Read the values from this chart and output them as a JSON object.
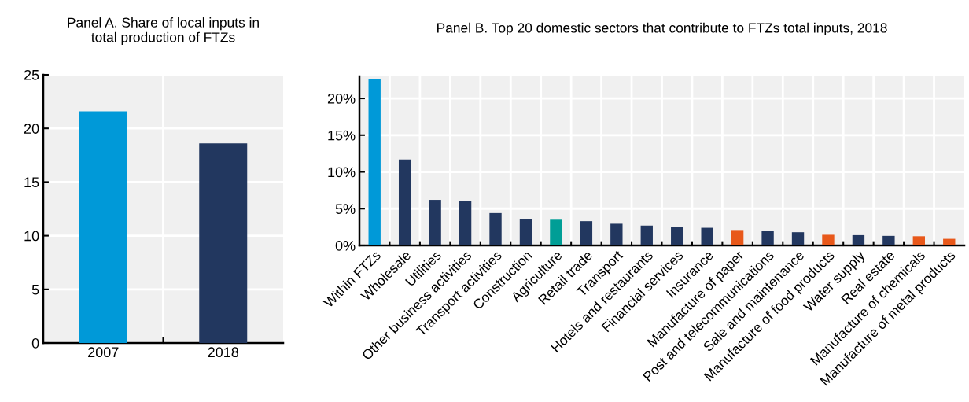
{
  "chart_data": [
    {
      "type": "bar",
      "title": "Panel A. Share of local inputs in\ntotal production of FTZs",
      "categories": [
        "2007",
        "2018"
      ],
      "values": [
        21.6,
        18.6
      ],
      "colors": [
        "#0099d8",
        "#22375f"
      ],
      "ylim": [
        0,
        25
      ],
      "yticks": [
        0,
        5,
        10,
        15,
        20,
        25
      ],
      "grid": true
    },
    {
      "type": "bar",
      "title": "Panel B. Top 20 domestic sectors that contribute to FTZs total inputs, 2018",
      "categories": [
        "Within FTZs",
        "Wholesale",
        "Utilities",
        "Other business activities",
        "Transport activities",
        "Construction",
        "Agriculture",
        "Retail trade",
        "Transport",
        "Hotels and restaurants",
        "Financial services",
        "Insurance",
        "Manufacture of paper",
        "Post and telecommunications",
        "Sale and maintenance",
        "Manufacture of food products",
        "Water supply",
        "Real estate",
        "Manufacture of chemicals",
        "Manufacture of metal products"
      ],
      "values": [
        22.6,
        11.7,
        6.2,
        6.0,
        4.4,
        3.55,
        3.5,
        3.3,
        2.95,
        2.7,
        2.5,
        2.4,
        2.1,
        1.95,
        1.8,
        1.45,
        1.4,
        1.3,
        1.25,
        0.9
      ],
      "colors": [
        "#0099d8",
        "#22375f",
        "#22375f",
        "#22375f",
        "#22375f",
        "#22375f",
        "#009e96",
        "#22375f",
        "#22375f",
        "#22375f",
        "#22375f",
        "#22375f",
        "#e8581a",
        "#22375f",
        "#22375f",
        "#e8581a",
        "#22375f",
        "#22375f",
        "#e8581a",
        "#e8581a"
      ],
      "ylim": [
        0,
        23
      ],
      "yticks": [
        {
          "value": 0,
          "label": "0%"
        },
        {
          "value": 5,
          "label": "5%"
        },
        {
          "value": 10,
          "label": "10%"
        },
        {
          "value": 15,
          "label": "15%"
        },
        {
          "value": 20,
          "label": "20%"
        }
      ],
      "grid": true
    }
  ]
}
